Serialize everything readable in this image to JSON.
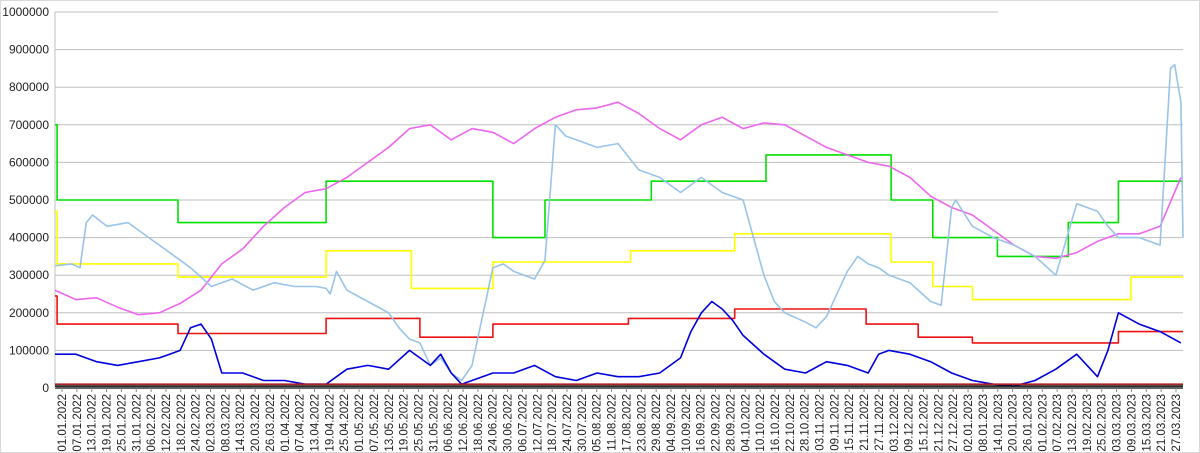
{
  "chart_data": {
    "type": "line",
    "title": "",
    "xlabel": "",
    "ylabel": "",
    "ylim": [
      0,
      1000000
    ],
    "grid": true,
    "legend": "none",
    "y_ticks": [
      "0",
      "100000",
      "200000",
      "300000",
      "400000",
      "500000",
      "600000",
      "700000",
      "800000",
      "900000",
      "1000000"
    ],
    "x_ticks": [
      "01.01.2022",
      "07.01.2022",
      "13.01.2022",
      "19.01.2022",
      "25.01.2022",
      "31.01.2022",
      "06.02.2022",
      "12.02.2022",
      "18.02.2022",
      "24.02.2022",
      "02.03.2022",
      "08.03.2022",
      "14.03.2022",
      "20.03.2022",
      "26.03.2022",
      "01.04.2022",
      "07.04.2022",
      "13.04.2022",
      "19.04.2022",
      "25.04.2022",
      "01.05.2022",
      "07.05.2022",
      "13.05.2022",
      "19.05.2022",
      "25.05.2022",
      "31.05.2022",
      "06.06.2022",
      "12.06.2022",
      "18.06.2022",
      "24.06.2022",
      "30.06.2022",
      "06.07.2022",
      "12.07.2022",
      "18.07.2022",
      "24.07.2022",
      "30.07.2022",
      "05.08.2022",
      "11.08.2022",
      "17.08.2022",
      "23.08.2022",
      "29.08.2022",
      "04.09.2022",
      "10.09.2022",
      "16.09.2022",
      "22.09.2022",
      "28.09.2022",
      "04.10.2022",
      "10.10.2022",
      "16.10.2022",
      "22.10.2022",
      "28.10.2022",
      "03.11.2022",
      "09.11.2022",
      "15.11.2022",
      "21.11.2022",
      "27.11.2022",
      "03.12.2022",
      "09.12.2022",
      "15.12.2022",
      "21.12.2022",
      "27.12.2022",
      "02.01.2023",
      "08.01.2023",
      "14.01.2023",
      "20.01.2023",
      "26.01.2023",
      "01.02.2023",
      "07.02.2023",
      "13.02.2023",
      "19.02.2023",
      "25.02.2023",
      "03.03.2023",
      "09.03.2023",
      "15.03.2023",
      "21.03.2023",
      "27.03.2023"
    ],
    "series": [
      {
        "color": "#00e000",
        "x": [
          0,
          1,
          1,
          59,
          59,
          130,
          130,
          210,
          210,
          235,
          235,
          286,
          286,
          341,
          341,
          401,
          401,
          421,
          421,
          452,
          452,
          486,
          486,
          510,
          510,
          534,
          534,
          541
        ],
        "values": [
          700000,
          700000,
          500000,
          500000,
          440000,
          440000,
          550000,
          550000,
          400000,
          400000,
          500000,
          500000,
          550000,
          550000,
          620000,
          620000,
          500000,
          500000,
          400000,
          400000,
          350000,
          350000,
          440000,
          440000,
          550000,
          550000,
          550000,
          550000
        ]
      },
      {
        "color": "#ffff00",
        "x": [
          0,
          1,
          1,
          59,
          59,
          130,
          130,
          171,
          171,
          210,
          210,
          276,
          276,
          326,
          326,
          401,
          401,
          421,
          421,
          440,
          440,
          516,
          516,
          541
        ],
        "values": [
          470000,
          470000,
          330000,
          330000,
          295000,
          295000,
          365000,
          365000,
          265000,
          265000,
          335000,
          335000,
          365000,
          365000,
          410000,
          410000,
          335000,
          335000,
          270000,
          270000,
          235000,
          235000,
          295000,
          295000
        ]
      },
      {
        "color": "#ee1111",
        "x": [
          0,
          1,
          1,
          59,
          59,
          130,
          130,
          175,
          175,
          210,
          210,
          275,
          275,
          326,
          326,
          389,
          389,
          414,
          414,
          440,
          440,
          510,
          510,
          541
        ],
        "values": [
          245000,
          245000,
          170000,
          170000,
          145000,
          145000,
          185000,
          185000,
          135000,
          135000,
          170000,
          170000,
          185000,
          185000,
          210000,
          210000,
          170000,
          170000,
          135000,
          135000,
          120000,
          120000,
          150000,
          150000
        ]
      },
      {
        "color": "#ee66ee",
        "x": [
          0,
          10,
          20,
          30,
          40,
          50,
          60,
          70,
          80,
          90,
          100,
          110,
          120,
          130,
          140,
          150,
          160,
          170,
          180,
          190,
          200,
          210,
          220,
          230,
          240,
          250,
          260,
          270,
          280,
          290,
          300,
          310,
          320,
          330,
          340,
          350,
          360,
          370,
          380,
          390,
          400,
          410,
          420,
          430,
          440,
          450,
          460,
          470,
          480,
          490,
          500,
          510,
          520,
          530,
          540
        ],
        "values": [
          260000,
          235000,
          240000,
          215000,
          195000,
          200000,
          225000,
          260000,
          330000,
          370000,
          430000,
          480000,
          520000,
          530000,
          560000,
          600000,
          640000,
          690000,
          700000,
          660000,
          690000,
          680000,
          650000,
          690000,
          720000,
          740000,
          745000,
          760000,
          730000,
          690000,
          660000,
          700000,
          720000,
          690000,
          705000,
          700000,
          670000,
          640000,
          620000,
          600000,
          590000,
          560000,
          510000,
          480000,
          460000,
          420000,
          380000,
          350000,
          345000,
          360000,
          390000,
          410000,
          410000,
          430000,
          560000
        ]
      },
      {
        "color": "#99c3e8",
        "x": [
          0,
          8,
          12,
          15,
          18,
          25,
          35,
          45,
          55,
          65,
          75,
          85,
          95,
          105,
          115,
          125,
          130,
          132,
          135,
          140,
          150,
          160,
          165,
          170,
          175,
          180,
          185,
          190,
          195,
          200,
          210,
          215,
          220,
          225,
          230,
          235,
          240,
          245,
          250,
          260,
          270,
          280,
          290,
          300,
          310,
          315,
          320,
          330,
          340,
          345,
          350,
          360,
          365,
          370,
          380,
          385,
          390,
          395,
          400,
          410,
          420,
          425,
          430,
          432,
          440,
          450,
          460,
          470,
          480,
          490,
          500,
          505,
          510,
          520,
          530,
          535,
          537,
          540,
          541
        ],
        "values": [
          325000,
          330000,
          320000,
          440000,
          460000,
          430000,
          440000,
          400000,
          360000,
          320000,
          270000,
          290000,
          260000,
          280000,
          270000,
          270000,
          265000,
          250000,
          310000,
          260000,
          230000,
          200000,
          160000,
          130000,
          120000,
          60000,
          80000,
          40000,
          20000,
          60000,
          320000,
          330000,
          310000,
          300000,
          290000,
          340000,
          700000,
          670000,
          660000,
          640000,
          650000,
          580000,
          560000,
          520000,
          560000,
          540000,
          520000,
          500000,
          300000,
          230000,
          200000,
          175000,
          160000,
          190000,
          310000,
          350000,
          330000,
          320000,
          300000,
          280000,
          230000,
          220000,
          480000,
          500000,
          430000,
          400000,
          380000,
          350000,
          300000,
          490000,
          470000,
          430000,
          400000,
          400000,
          380000,
          850000,
          860000,
          760000,
          400000
        ]
      },
      {
        "color": "#0000dd",
        "x": [
          0,
          10,
          20,
          30,
          40,
          50,
          55,
          60,
          65,
          70,
          75,
          80,
          90,
          100,
          110,
          120,
          130,
          140,
          150,
          160,
          170,
          175,
          180,
          185,
          190,
          195,
          200,
          210,
          220,
          230,
          240,
          250,
          260,
          270,
          280,
          290,
          300,
          305,
          310,
          315,
          320,
          325,
          330,
          340,
          350,
          360,
          370,
          380,
          390,
          395,
          400,
          405,
          410,
          420,
          430,
          440,
          450,
          460,
          470,
          480,
          490,
          500,
          505,
          510,
          520,
          530,
          540
        ],
        "values": [
          90000,
          90000,
          70000,
          60000,
          70000,
          80000,
          90000,
          100000,
          160000,
          170000,
          130000,
          40000,
          40000,
          20000,
          20000,
          10000,
          10000,
          50000,
          60000,
          50000,
          100000,
          80000,
          60000,
          90000,
          40000,
          10000,
          20000,
          40000,
          40000,
          60000,
          30000,
          20000,
          40000,
          30000,
          30000,
          40000,
          80000,
          150000,
          200000,
          230000,
          210000,
          180000,
          140000,
          90000,
          50000,
          40000,
          70000,
          60000,
          40000,
          90000,
          100000,
          95000,
          90000,
          70000,
          40000,
          20000,
          10000,
          5000,
          20000,
          50000,
          90000,
          30000,
          100000,
          200000,
          170000,
          150000,
          120000
        ]
      },
      {
        "color": "#b22222",
        "x": [
          0,
          541
        ],
        "values": [
          10000,
          10000
        ]
      },
      {
        "color": "#111111",
        "x": [
          0,
          541
        ],
        "values": [
          5000,
          5000
        ]
      }
    ]
  }
}
